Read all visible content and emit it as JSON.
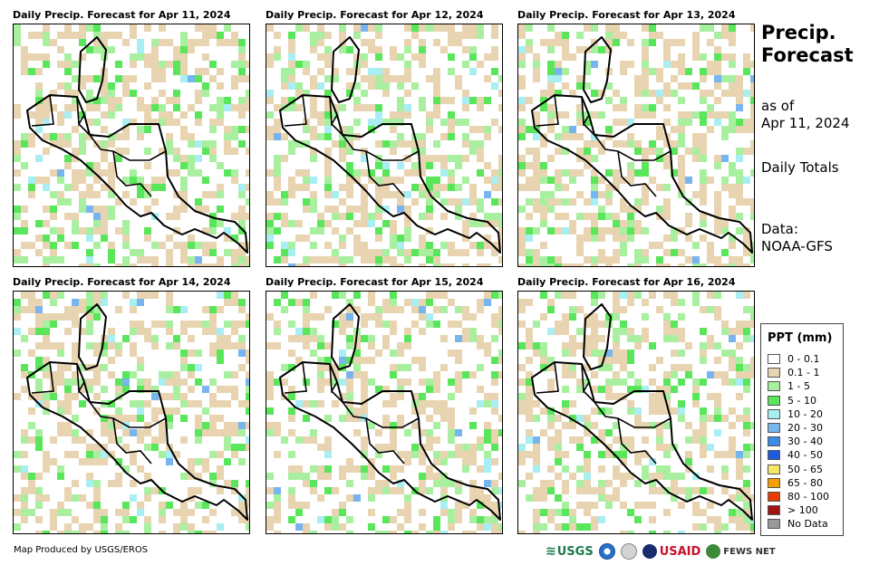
{
  "panels": [
    {
      "title": "Daily Precip. Forecast for Apr 11, 2024"
    },
    {
      "title": "Daily Precip. Forecast for Apr 12, 2024"
    },
    {
      "title": "Daily Precip. Forecast for Apr 13, 2024"
    },
    {
      "title": "Daily Precip. Forecast for Apr 14, 2024"
    },
    {
      "title": "Daily Precip. Forecast for Apr 15, 2024"
    },
    {
      "title": "Daily Precip. Forecast for Apr 16, 2024"
    }
  ],
  "side": {
    "title_line1": "Precip.",
    "title_line2": "Forecast",
    "asof_line1": "as of",
    "asof_line2": "Apr 11, 2024",
    "totals": "Daily Totals",
    "data_line1": "Data:",
    "data_line2": "NOAA-GFS"
  },
  "legend": {
    "title": "PPT (mm)",
    "items": [
      {
        "label": "0 - 0.1",
        "color": "#ffffff"
      },
      {
        "label": "0.1 - 1",
        "color": "#e8d4b0"
      },
      {
        "label": "1 - 5",
        "color": "#a8f0a0"
      },
      {
        "label": "5 - 10",
        "color": "#5ae65a"
      },
      {
        "label": "10 - 20",
        "color": "#a8eef2"
      },
      {
        "label": "20 - 30",
        "color": "#78b4ee"
      },
      {
        "label": "30 - 40",
        "color": "#3c8ce6"
      },
      {
        "label": "40 - 50",
        "color": "#1e5adc"
      },
      {
        "label": "50 - 65",
        "color": "#f5e664"
      },
      {
        "label": "65 - 80",
        "color": "#f5a000"
      },
      {
        "label": "80 - 100",
        "color": "#e63c00"
      },
      {
        "label": "> 100",
        "color": "#a01414"
      },
      {
        "label": "No Data",
        "color": "#999999"
      }
    ]
  },
  "footer": {
    "credit": "Map Produced by USGS/EROS",
    "logo_usgs": "USGS",
    "logo_usaid": "USAID",
    "logo_fews": "FEWS NET"
  },
  "colors": {
    "bare": "#e8d4b0",
    "light": "#a8f0a0",
    "mid": "#5ae65a",
    "blue": "#a8eef2",
    "deep": "#78b4ee"
  }
}
